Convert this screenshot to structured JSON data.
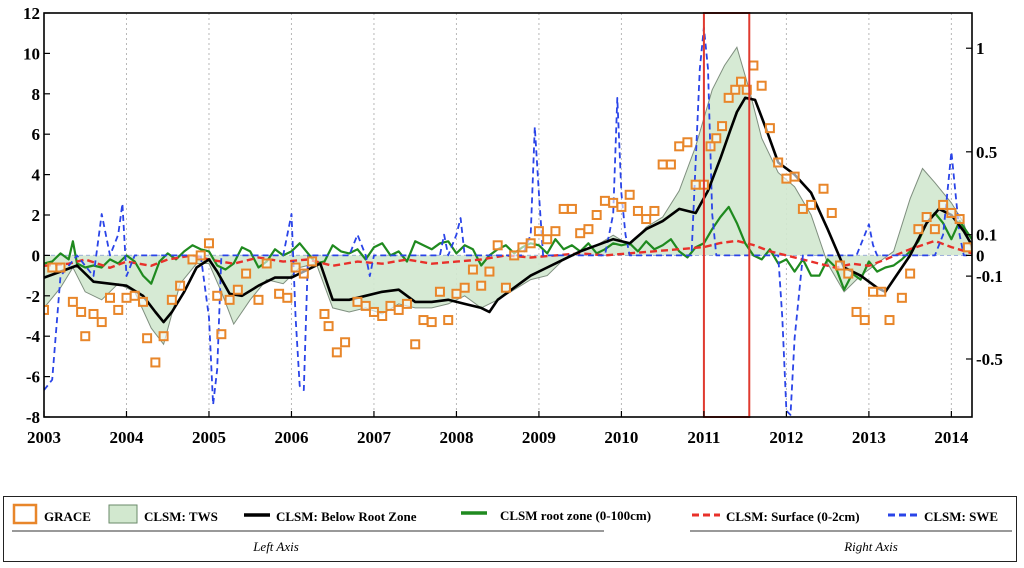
{
  "chart_data": {
    "type": "line",
    "title": "",
    "xlabel": "",
    "ylabel": "",
    "xlim": [
      2003.0,
      2014.25
    ],
    "ylim_left": [
      -8,
      12
    ],
    "ylim_right": [
      -0.78,
      1.17
    ],
    "x_ticks": [
      "2003",
      "2004",
      "2005",
      "2006",
      "2007",
      "2008",
      "2009",
      "2010",
      "2011",
      "2012",
      "2013",
      "2014"
    ],
    "y_ticks_left": [
      "12",
      "10",
      "8",
      "6",
      "4",
      "2",
      "0",
      "-2",
      "-4",
      "-6",
      "-8"
    ],
    "y_ticks_right": [
      "1",
      "0.5",
      "0.1",
      "0",
      "-0.1",
      "-0.5"
    ],
    "highlight": {
      "x_start": 2011.0,
      "x_end": 2011.55,
      "color": "#e03a2f"
    },
    "series": [
      {
        "name": "CLSM: TWS",
        "axis": "left",
        "style": "area",
        "x": [
          2003.0,
          2003.2,
          2003.35,
          2003.5,
          2003.7,
          2003.9,
          2004.1,
          2004.3,
          2004.45,
          2004.65,
          2004.85,
          2005.0,
          2005.15,
          2005.3,
          2005.5,
          2005.7,
          2005.9,
          2006.1,
          2006.3,
          2006.5,
          2006.7,
          2006.9,
          2007.1,
          2007.3,
          2007.5,
          2007.7,
          2007.9,
          2008.1,
          2008.3,
          2008.5,
          2008.7,
          2008.9,
          2009.1,
          2009.3,
          2009.5,
          2009.7,
          2009.9,
          2010.1,
          2010.3,
          2010.5,
          2010.7,
          2010.9,
          2011.1,
          2011.25,
          2011.4,
          2011.55,
          2011.7,
          2011.9,
          2012.1,
          2012.3,
          2012.5,
          2012.7,
          2012.9,
          2013.1,
          2013.3,
          2013.5,
          2013.65,
          2013.8,
          2014.0,
          2014.15,
          2014.25
        ],
        "values": [
          -2.6,
          -1.6,
          -0.6,
          -1.8,
          -2.2,
          -1.4,
          -1.8,
          -3.6,
          -4.4,
          -1.4,
          -0.4,
          -0.4,
          -1.8,
          -3.4,
          -2.2,
          -1.2,
          -1.4,
          -0.6,
          -0.4,
          -2.6,
          -2.8,
          -2.6,
          -2.9,
          -2.4,
          -2.6,
          -2.6,
          -2.4,
          -2.0,
          -2.6,
          -2.2,
          -1.7,
          -1.2,
          -1.0,
          -0.2,
          0.2,
          0.5,
          1.0,
          0.5,
          1.4,
          1.9,
          3.2,
          5.4,
          8.2,
          9.4,
          10.3,
          8.2,
          5.8,
          4.1,
          3.4,
          2.0,
          -0.4,
          -1.8,
          -1.0,
          -0.4,
          0.2,
          2.8,
          4.3,
          3.6,
          2.6,
          1.6,
          0.2
        ]
      },
      {
        "name": "CLSM: Below Root Zone",
        "axis": "left",
        "style": "black-solid",
        "x": [
          2003.0,
          2003.2,
          2003.4,
          2003.6,
          2003.8,
          2004.0,
          2004.2,
          2004.35,
          2004.45,
          2004.55,
          2004.7,
          2004.85,
          2005.0,
          2005.1,
          2005.25,
          2005.4,
          2005.6,
          2005.8,
          2006.0,
          2006.2,
          2006.35,
          2006.5,
          2006.7,
          2006.9,
          2007.1,
          2007.3,
          2007.5,
          2007.7,
          2007.9,
          2008.1,
          2008.3,
          2008.4,
          2008.5,
          2008.7,
          2008.9,
          2009.1,
          2009.3,
          2009.5,
          2009.7,
          2009.9,
          2010.1,
          2010.3,
          2010.5,
          2010.7,
          2010.9,
          2011.05,
          2011.2,
          2011.32,
          2011.4,
          2011.5,
          2011.62,
          2011.75,
          2011.9,
          2012.1,
          2012.3,
          2012.5,
          2012.7,
          2012.9,
          2013.1,
          2013.2,
          2013.3,
          2013.5,
          2013.7,
          2013.85,
          2014.0,
          2014.15,
          2014.25
        ],
        "values": [
          -1.1,
          -0.8,
          -0.5,
          -1.3,
          -1.4,
          -1.5,
          -2.0,
          -2.8,
          -3.3,
          -2.8,
          -1.8,
          -0.6,
          -0.2,
          -0.8,
          -1.9,
          -2.0,
          -1.5,
          -1.1,
          -1.1,
          -0.7,
          -0.4,
          -2.2,
          -2.2,
          -2.0,
          -1.8,
          -1.7,
          -2.3,
          -2.3,
          -2.2,
          -2.4,
          -2.6,
          -2.8,
          -2.2,
          -1.6,
          -1.0,
          -0.6,
          -0.2,
          0.2,
          0.5,
          0.8,
          0.6,
          1.3,
          1.7,
          2.3,
          2.1,
          3.2,
          4.8,
          6.2,
          7.1,
          7.8,
          7.7,
          6.3,
          4.6,
          4.0,
          3.1,
          1.3,
          -0.6,
          -1.0,
          -1.6,
          -1.8,
          -1.2,
          0.0,
          1.6,
          2.3,
          2.0,
          1.2,
          0.5
        ]
      },
      {
        "name": "CLSM root zone (0-100cm)",
        "axis": "left",
        "style": "green-solid",
        "x": [
          2003.0,
          2003.1,
          2003.2,
          2003.3,
          2003.35,
          2003.4,
          2003.5,
          2003.6,
          2003.7,
          2003.8,
          2003.9,
          2004.0,
          2004.1,
          2004.2,
          2004.3,
          2004.4,
          2004.5,
          2004.6,
          2004.7,
          2004.8,
          2004.9,
          2005.0,
          2005.1,
          2005.2,
          2005.3,
          2005.4,
          2005.5,
          2005.6,
          2005.7,
          2005.8,
          2005.9,
          2006.0,
          2006.1,
          2006.2,
          2006.3,
          2006.4,
          2006.5,
          2006.6,
          2006.7,
          2006.8,
          2006.9,
          2007.0,
          2007.1,
          2007.2,
          2007.3,
          2007.4,
          2007.5,
          2007.6,
          2007.7,
          2007.8,
          2007.9,
          2008.0,
          2008.1,
          2008.2,
          2008.3,
          2008.4,
          2008.5,
          2008.6,
          2008.7,
          2008.8,
          2008.9,
          2009.0,
          2009.1,
          2009.2,
          2009.3,
          2009.4,
          2009.5,
          2009.6,
          2009.7,
          2009.8,
          2009.9,
          2010.0,
          2010.1,
          2010.2,
          2010.3,
          2010.4,
          2010.5,
          2010.6,
          2010.7,
          2010.8,
          2010.9,
          2011.0,
          2011.1,
          2011.2,
          2011.3,
          2011.4,
          2011.5,
          2011.6,
          2011.7,
          2011.8,
          2011.9,
          2012.0,
          2012.1,
          2012.2,
          2012.3,
          2012.4,
          2012.5,
          2012.6,
          2012.7,
          2012.8,
          2012.9,
          2013.0,
          2013.1,
          2013.2,
          2013.3,
          2013.4,
          2013.5,
          2013.6,
          2013.7,
          2013.8,
          2013.9,
          2014.0,
          2014.1,
          2014.2,
          2014.25
        ],
        "values": [
          -0.4,
          -0.3,
          0.1,
          -0.2,
          0.7,
          -0.4,
          -0.6,
          -0.5,
          -0.6,
          -0.2,
          -0.4,
          0.0,
          -0.3,
          -1.0,
          -1.4,
          -0.3,
          0.1,
          -0.2,
          0.2,
          0.5,
          0.3,
          0.2,
          -0.5,
          -0.7,
          -0.4,
          0.4,
          0.2,
          -0.6,
          -0.3,
          0.3,
          0.0,
          0.2,
          0.6,
          0.1,
          -0.4,
          -0.3,
          0.5,
          0.2,
          0.1,
          0.3,
          -0.2,
          0.4,
          0.6,
          0.0,
          0.2,
          -0.3,
          0.7,
          0.5,
          0.3,
          0.6,
          0.7,
          0.1,
          0.5,
          0.3,
          -0.5,
          0.0,
          0.3,
          0.5,
          0.1,
          0.4,
          0.6,
          0.5,
          0.1,
          0.8,
          0.3,
          0.5,
          0.2,
          0.6,
          0.1,
          0.3,
          0.6,
          0.5,
          0.6,
          0.2,
          0.7,
          0.3,
          0.5,
          0.8,
          0.2,
          -0.1,
          0.4,
          0.6,
          1.3,
          1.9,
          2.4,
          1.6,
          0.6,
          0.0,
          -0.2,
          0.3,
          -0.4,
          -0.2,
          -0.8,
          -0.2,
          -1.0,
          -1.0,
          -0.2,
          -0.6,
          -1.7,
          -0.9,
          -1.2,
          -0.3,
          -0.8,
          -0.6,
          -0.5,
          -0.2,
          0.2,
          0.7,
          1.6,
          2.1,
          1.6,
          0.8,
          1.7,
          1.1,
          0.8
        ]
      },
      {
        "name": "CLSM: Surface (0-2cm)",
        "axis": "right",
        "style": "red-dashed",
        "x": [
          2003.0,
          2003.3,
          2003.5,
          2003.8,
          2004.0,
          2004.3,
          2004.5,
          2004.8,
          2005.0,
          2005.3,
          2005.6,
          2005.9,
          2006.2,
          2006.5,
          2006.8,
          2007.1,
          2007.4,
          2007.7,
          2008.0,
          2008.3,
          2008.6,
          2008.9,
          2009.2,
          2009.5,
          2009.8,
          2010.1,
          2010.4,
          2010.7,
          2011.0,
          2011.2,
          2011.4,
          2011.6,
          2011.8,
          2012.0,
          2012.2,
          2012.4,
          2012.6,
          2012.8,
          2013.0,
          2013.2,
          2013.5,
          2013.8,
          2014.0,
          2014.25
        ],
        "values": [
          -0.05,
          -0.04,
          -0.02,
          -0.06,
          -0.03,
          -0.05,
          -0.02,
          0.0,
          -0.02,
          -0.04,
          -0.01,
          -0.03,
          -0.02,
          -0.05,
          -0.03,
          -0.04,
          -0.02,
          -0.04,
          -0.03,
          -0.02,
          0.0,
          -0.01,
          0.0,
          0.01,
          0.0,
          0.01,
          0.02,
          0.03,
          0.04,
          0.06,
          0.07,
          0.05,
          0.02,
          0.0,
          -0.02,
          -0.04,
          -0.06,
          -0.04,
          -0.05,
          -0.02,
          0.03,
          0.07,
          0.04,
          0.01
        ]
      },
      {
        "name": "CLSM: SWE",
        "axis": "right",
        "style": "blue-dashed",
        "x": [
          2003.0,
          2003.1,
          2003.2,
          2003.4,
          2003.6,
          2003.7,
          2003.8,
          2003.9,
          2003.95,
          2004.0,
          2004.1,
          2004.2,
          2004.9,
          2005.0,
          2005.05,
          2005.1,
          2005.15,
          2005.2,
          2005.3,
          2005.9,
          2006.0,
          2006.05,
          2006.1,
          2006.15,
          2006.2,
          2006.3,
          2006.5,
          2006.7,
          2006.8,
          2006.9,
          2006.95,
          2007.0,
          2007.05,
          2007.1,
          2007.2,
          2007.8,
          2007.85,
          2007.9,
          2008.0,
          2008.05,
          2008.1,
          2008.15,
          2008.2,
          2008.3,
          2008.8,
          2008.9,
          2008.95,
          2009.0,
          2009.05,
          2009.1,
          2009.2,
          2009.8,
          2009.9,
          2009.95,
          2010.0,
          2010.05,
          2010.1,
          2010.15,
          2010.2,
          2010.3,
          2010.85,
          2010.95,
          2011.0,
          2011.05,
          2011.1,
          2011.15,
          2011.2,
          2011.25,
          2011.3,
          2011.9,
          2011.95,
          2012.0,
          2012.05,
          2012.1,
          2012.2,
          2012.85,
          2012.95,
          2013.0,
          2013.05,
          2013.1,
          2013.2,
          2013.8,
          2013.9,
          2013.95,
          2014.0,
          2014.05,
          2014.1,
          2014.15,
          2014.2,
          2014.25
        ],
        "values": [
          -0.65,
          -0.6,
          -0.1,
          0.0,
          -0.1,
          0.2,
          0.0,
          0.1,
          0.25,
          -0.1,
          0.0,
          0.0,
          0.0,
          -0.3,
          -0.72,
          -0.55,
          0.0,
          0.0,
          0.0,
          0.0,
          0.2,
          -0.3,
          -0.63,
          -0.65,
          0.0,
          0.0,
          0.0,
          0.0,
          0.1,
          0.0,
          -0.1,
          0.0,
          0.0,
          0.0,
          0.0,
          0.0,
          0.1,
          0.0,
          0.1,
          0.18,
          0.0,
          0.0,
          0.0,
          0.0,
          0.0,
          0.1,
          0.62,
          0.3,
          0.0,
          0.0,
          0.0,
          0.0,
          0.2,
          0.76,
          0.3,
          0.1,
          0.0,
          0.0,
          0.0,
          0.0,
          0.0,
          0.9,
          1.1,
          0.9,
          0.2,
          0.0,
          0.0,
          0.0,
          0.0,
          0.0,
          -0.3,
          -0.75,
          -0.77,
          -0.4,
          0.0,
          0.0,
          0.1,
          0.15,
          0.05,
          0.0,
          0.0,
          0.0,
          0.1,
          0.3,
          0.5,
          0.3,
          0.1,
          0.0,
          0.0,
          0.0
        ]
      },
      {
        "name": "GRACE",
        "axis": "left",
        "style": "orange-squares",
        "x": [
          2003.0,
          2003.1,
          2003.2,
          2003.35,
          2003.45,
          2003.5,
          2003.6,
          2003.7,
          2003.8,
          2003.9,
          2004.0,
          2004.1,
          2004.2,
          2004.25,
          2004.35,
          2004.45,
          2004.55,
          2004.65,
          2004.8,
          2004.9,
          2005.0,
          2005.1,
          2005.15,
          2005.25,
          2005.35,
          2005.45,
          2005.6,
          2005.7,
          2005.85,
          2005.95,
          2006.05,
          2006.15,
          2006.25,
          2006.4,
          2006.45,
          2006.55,
          2006.65,
          2006.8,
          2006.9,
          2007.0,
          2007.1,
          2007.2,
          2007.3,
          2007.4,
          2007.5,
          2007.6,
          2007.7,
          2007.8,
          2007.9,
          2008.0,
          2008.1,
          2008.2,
          2008.3,
          2008.4,
          2008.5,
          2008.6,
          2008.7,
          2008.8,
          2008.9,
          2009.0,
          2009.1,
          2009.2,
          2009.3,
          2009.4,
          2009.5,
          2009.6,
          2009.7,
          2009.8,
          2009.9,
          2010.0,
          2010.1,
          2010.2,
          2010.3,
          2010.4,
          2010.5,
          2010.6,
          2010.7,
          2010.8,
          2010.9,
          2011.0,
          2011.08,
          2011.15,
          2011.22,
          2011.3,
          2011.38,
          2011.45,
          2011.52,
          2011.6,
          2011.7,
          2011.8,
          2011.9,
          2012.0,
          2012.1,
          2012.2,
          2012.3,
          2012.45,
          2012.55,
          2012.65,
          2012.75,
          2012.85,
          2012.95,
          2013.05,
          2013.15,
          2013.25,
          2013.4,
          2013.5,
          2013.6,
          2013.7,
          2013.8,
          2013.9,
          2014.0,
          2014.1,
          2014.2
        ],
        "values": [
          -2.7,
          -0.6,
          -0.6,
          -2.3,
          -2.8,
          -4.0,
          -2.9,
          -3.3,
          -2.1,
          -2.7,
          -2.1,
          -2.0,
          -2.3,
          -4.1,
          -5.3,
          -4.0,
          -2.2,
          -1.5,
          -0.2,
          0.0,
          0.6,
          -2.0,
          -3.9,
          -2.2,
          -1.7,
          -0.9,
          -2.2,
          -0.4,
          -1.9,
          -2.1,
          -0.6,
          -0.9,
          -0.3,
          -2.9,
          -3.5,
          -4.8,
          -4.3,
          -2.3,
          -2.5,
          -2.8,
          -3.0,
          -2.5,
          -2.7,
          -2.4,
          -4.4,
          -3.2,
          -3.3,
          -1.8,
          -3.2,
          -1.9,
          -1.6,
          -0.7,
          -1.5,
          -0.8,
          0.5,
          -1.6,
          0.0,
          0.4,
          0.6,
          1.2,
          0.8,
          1.2,
          2.3,
          2.3,
          1.1,
          1.3,
          2.0,
          2.7,
          2.6,
          2.4,
          3.0,
          2.2,
          1.8,
          2.2,
          4.5,
          4.5,
          5.4,
          5.6,
          3.5,
          3.5,
          5.4,
          5.8,
          6.4,
          7.8,
          8.2,
          8.6,
          8.2,
          9.4,
          8.4,
          6.3,
          4.6,
          3.8,
          3.9,
          2.3,
          2.5,
          3.3,
          2.1,
          -0.5,
          -0.9,
          -2.8,
          -3.2,
          -1.8,
          -1.8,
          -3.2,
          -2.1,
          -0.9,
          1.3,
          1.9,
          1.3,
          2.5,
          2.1,
          1.8,
          0.4
        ]
      }
    ]
  },
  "legend": {
    "items": [
      {
        "label": "GRACE",
        "color": "#e8862a"
      },
      {
        "label": "CLSM: TWS",
        "color": "#d2e8cf"
      },
      {
        "label": "CLSM: Below Root Zone",
        "color": "#000000"
      },
      {
        "label": "CLSM root zone (0-100cm)",
        "color": "#1f8a1f"
      },
      {
        "label": "CLSM: Surface (0-2cm)",
        "color": "#e8302a"
      },
      {
        "label": "CLSM: SWE",
        "color": "#2a44e8"
      }
    ],
    "left_axis_label": "Left Axis",
    "right_axis_label": "Right Axis"
  }
}
